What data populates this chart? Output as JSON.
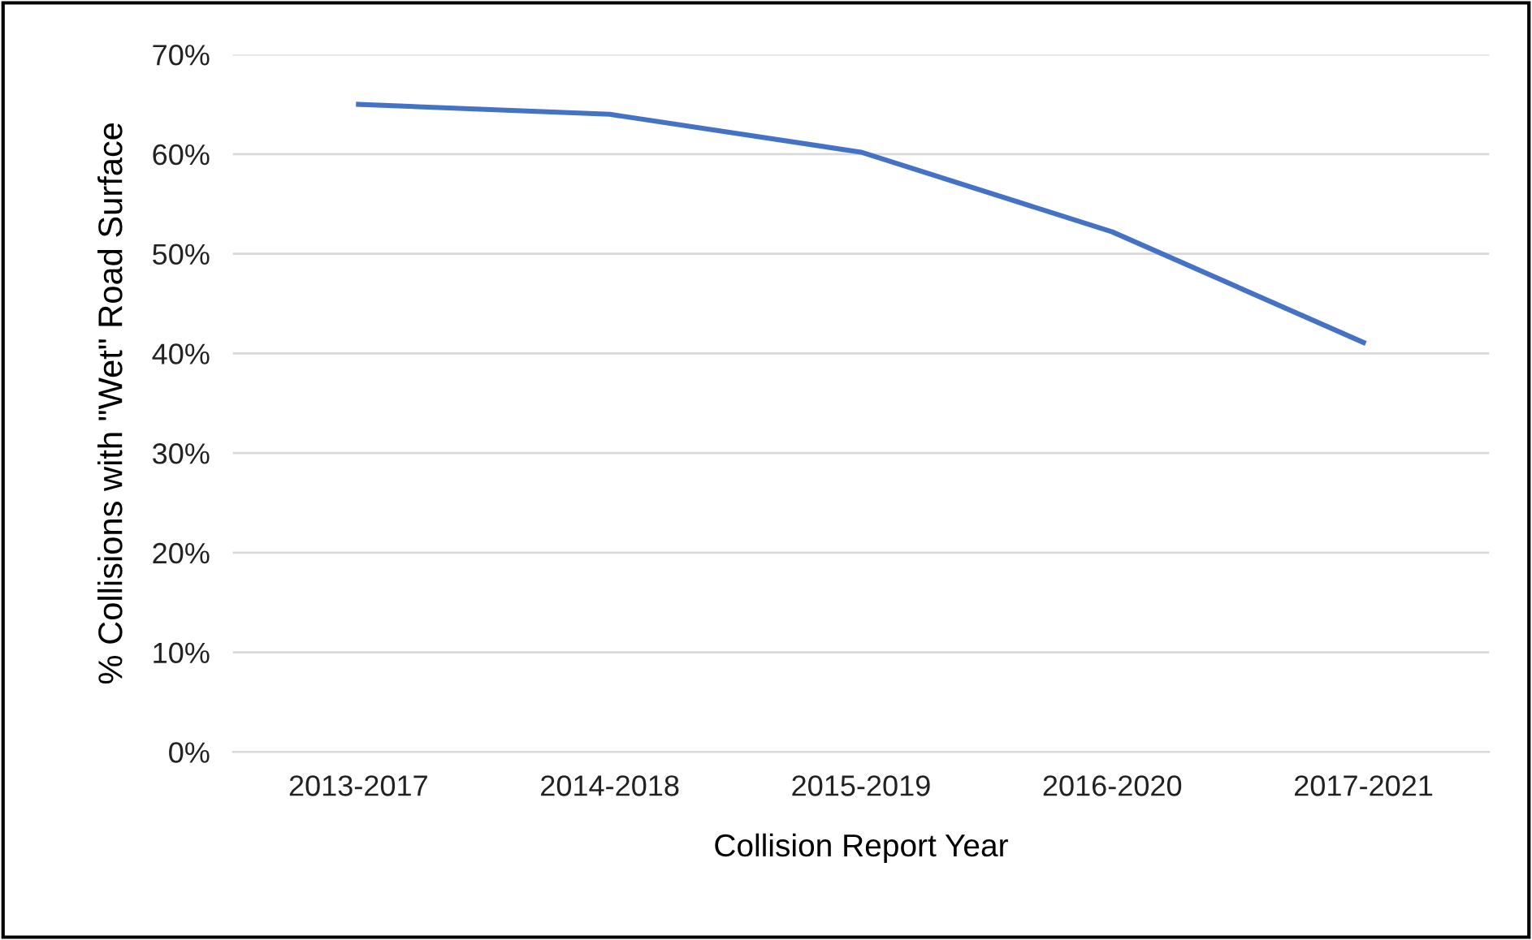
{
  "chart_data": {
    "type": "line",
    "xlabel": "Collision Report Year",
    "ylabel": "% Collisions with \"Wet\" Road Surface",
    "categories": [
      "2013-2017",
      "2014-2018",
      "2015-2019",
      "2016-2020",
      "2017-2021"
    ],
    "series": [
      {
        "color": "#4472c4",
        "values": [
          65,
          64,
          60.2,
          52.2,
          41.1
        ]
      }
    ],
    "ylim": [
      0,
      70
    ],
    "yticks": [
      {
        "value": 0,
        "label": "0%"
      },
      {
        "value": 10,
        "label": "10%"
      },
      {
        "value": 20,
        "label": "20%"
      },
      {
        "value": 30,
        "label": "30%"
      },
      {
        "value": 40,
        "label": "40%"
      },
      {
        "value": 50,
        "label": "50%"
      },
      {
        "value": 60,
        "label": "60%"
      },
      {
        "value": 70,
        "label": "70%"
      }
    ],
    "grid": "y",
    "legend": false,
    "marker": "none",
    "line_style": "solid"
  }
}
